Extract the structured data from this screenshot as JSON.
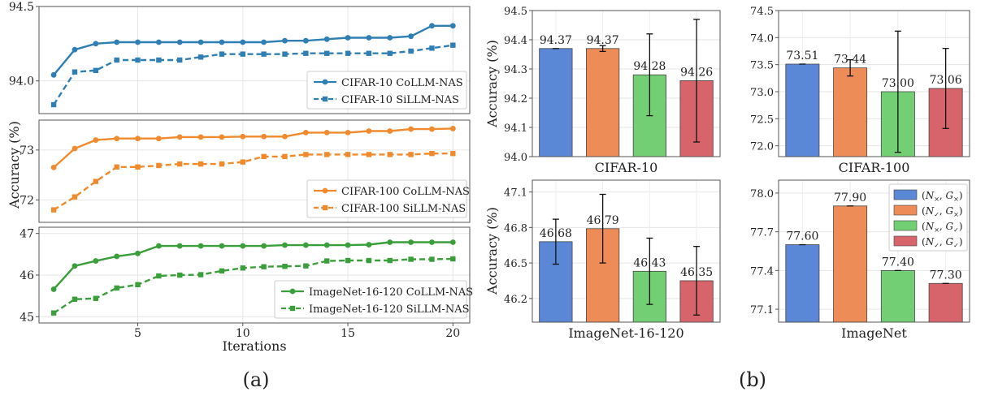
{
  "panel_labels": [
    "(a)",
    "(b)"
  ],
  "colors": {
    "blue": "#2f7fb5",
    "orange": "#f08a2c",
    "green": "#3a9f3a",
    "bar_blue": "#5a87d6",
    "bar_orange": "#ee8c58",
    "bar_green": "#73cf74",
    "bar_red": "#d6646a"
  },
  "chart_data": [
    {
      "type": "line",
      "panel": "(a)",
      "ylabel": "Accuracy (%)",
      "xlabel": "Iterations",
      "xlim": [
        0.3,
        20.8
      ],
      "xticks": [
        5,
        10,
        15,
        20
      ],
      "grid": true,
      "subplots": [
        {
          "ylim": [
            93.78,
            94.5
          ],
          "yticks": [
            94.0,
            94.5
          ],
          "ytick_labels": [
            "94.0",
            "94.5"
          ],
          "legend_position": "lower-right",
          "series": [
            {
              "name": "CIFAR-10 CoLLM-NAS",
              "style": "solid",
              "marker": "circle",
              "color": "#2f7fb5",
              "x": [
                1,
                2,
                3,
                4,
                5,
                6,
                7,
                8,
                9,
                10,
                11,
                12,
                13,
                14,
                15,
                16,
                17,
                18,
                19,
                20
              ],
              "y": [
                94.04,
                94.21,
                94.25,
                94.26,
                94.26,
                94.26,
                94.26,
                94.26,
                94.26,
                94.26,
                94.26,
                94.27,
                94.27,
                94.28,
                94.29,
                94.29,
                94.29,
                94.3,
                94.37,
                94.37
              ]
            },
            {
              "name": "CIFAR-10 SiLLM-NAS",
              "style": "dashed",
              "marker": "square",
              "color": "#2f7fb5",
              "x": [
                1,
                2,
                3,
                4,
                5,
                6,
                7,
                8,
                9,
                10,
                11,
                12,
                13,
                14,
                15,
                16,
                17,
                18,
                19,
                20
              ],
              "y": [
                93.84,
                94.06,
                94.07,
                94.14,
                94.14,
                94.14,
                94.14,
                94.16,
                94.18,
                94.18,
                94.18,
                94.18,
                94.185,
                94.185,
                94.185,
                94.185,
                94.185,
                94.2,
                94.22,
                94.24
              ]
            }
          ]
        },
        {
          "ylim": [
            71.55,
            73.6
          ],
          "yticks": [
            72,
            73
          ],
          "ytick_labels": [
            "72",
            "73"
          ],
          "legend_position": "lower-right",
          "series": [
            {
              "name": "CIFAR-100 CoLLM-NAS",
              "style": "solid",
              "marker": "circle",
              "color": "#f08a2c",
              "x": [
                1,
                2,
                3,
                4,
                5,
                6,
                7,
                8,
                9,
                10,
                11,
                12,
                13,
                14,
                15,
                16,
                17,
                18,
                19,
                20
              ],
              "y": [
                72.65,
                73.03,
                73.2,
                73.23,
                73.23,
                73.23,
                73.26,
                73.26,
                73.26,
                73.27,
                73.27,
                73.27,
                73.35,
                73.35,
                73.35,
                73.38,
                73.38,
                73.42,
                73.42,
                73.43
              ]
            },
            {
              "name": "CIFAR-100 SiLLM-NAS",
              "style": "dashed",
              "marker": "square",
              "color": "#f08a2c",
              "x": [
                1,
                2,
                3,
                4,
                5,
                6,
                7,
                8,
                9,
                10,
                11,
                12,
                13,
                14,
                15,
                16,
                17,
                18,
                19,
                20
              ],
              "y": [
                71.8,
                72.06,
                72.37,
                72.66,
                72.66,
                72.69,
                72.72,
                72.72,
                72.72,
                72.76,
                72.87,
                72.87,
                72.91,
                72.91,
                72.91,
                72.91,
                72.91,
                72.91,
                72.93,
                72.93
              ]
            }
          ]
        },
        {
          "ylim": [
            44.85,
            47.15
          ],
          "yticks": [
            45,
            46,
            47
          ],
          "ytick_labels": [
            "45",
            "46",
            "47"
          ],
          "legend_position": "lower-right",
          "series": [
            {
              "name": "ImageNet-16-120 CoLLM-NAS",
              "style": "solid",
              "marker": "circle",
              "color": "#3a9f3a",
              "x": [
                1,
                2,
                3,
                4,
                5,
                6,
                7,
                8,
                9,
                10,
                11,
                12,
                13,
                14,
                15,
                16,
                17,
                18,
                19,
                20
              ],
              "y": [
                45.66,
                46.22,
                46.34,
                46.45,
                46.52,
                46.7,
                46.7,
                46.7,
                46.7,
                46.7,
                46.7,
                46.72,
                46.72,
                46.72,
                46.72,
                46.73,
                46.79,
                46.79,
                46.79,
                46.79
              ]
            },
            {
              "name": "ImageNet-16-120 SiLLM-NAS",
              "style": "dashed",
              "marker": "square",
              "color": "#3a9f3a",
              "x": [
                1,
                2,
                3,
                4,
                5,
                6,
                7,
                8,
                9,
                10,
                11,
                12,
                13,
                14,
                15,
                16,
                17,
                18,
                19,
                20
              ],
              "y": [
                45.09,
                45.42,
                45.44,
                45.69,
                45.77,
                45.98,
                46.0,
                46.01,
                46.1,
                46.17,
                46.2,
                46.21,
                46.22,
                46.34,
                46.35,
                46.35,
                46.35,
                46.38,
                46.38,
                46.39
              ]
            }
          ]
        }
      ]
    },
    {
      "type": "bar",
      "panel": "(b)",
      "ylabel": "Accuracy (%)",
      "grid": true,
      "legend": {
        "position": "upper-right",
        "subplot": "ImageNet",
        "entries": [
          {
            "sym": "N",
            "sub1": "×",
            "sub2": "×",
            "color": "#5a87d6"
          },
          {
            "sym": "N",
            "sub1": "✓",
            "sub2": "×",
            "color": "#ee8c58"
          },
          {
            "sym": "N",
            "sub1": "×",
            "sub2": "✓",
            "color": "#73cf74"
          },
          {
            "sym": "N",
            "sub1": "✓",
            "sub2": "✓",
            "color": "#d6646a"
          }
        ],
        "g_symbol": "G"
      },
      "subplots": [
        {
          "title": "CIFAR-10",
          "ylim": [
            94.0,
            94.5
          ],
          "yticks": [
            "94.0",
            "94.1",
            "94.2",
            "94.3",
            "94.4",
            "94.5"
          ],
          "ytick_values": [
            94.0,
            94.1,
            94.2,
            94.3,
            94.4,
            94.5
          ],
          "values": [
            94.37,
            94.37,
            94.28,
            94.26
          ],
          "labels": [
            "94.37",
            "94.37",
            "94.28",
            "94.26"
          ],
          "errors": [
            0.0,
            0.01,
            0.14,
            0.21
          ]
        },
        {
          "title": "CIFAR-100",
          "ylim": [
            71.8,
            74.5
          ],
          "yticks": [
            "72.0",
            "72.5",
            "73.0",
            "73.5",
            "74.0",
            "74.5"
          ],
          "ytick_values": [
            72.0,
            72.5,
            73.0,
            73.5,
            74.0,
            74.5
          ],
          "values": [
            73.51,
            73.44,
            73.0,
            73.06
          ],
          "labels": [
            "73.51",
            "73.44",
            "73.00",
            "73.06"
          ],
          "errors": [
            0.0,
            0.15,
            1.12,
            0.74
          ]
        },
        {
          "title": "ImageNet-16-120",
          "ylim": [
            46.0,
            47.2
          ],
          "yticks": [
            "46.2",
            "46.5",
            "46.8",
            "47.1"
          ],
          "ytick_values": [
            46.2,
            46.5,
            46.8,
            47.1
          ],
          "values": [
            46.68,
            46.79,
            46.43,
            46.35
          ],
          "labels": [
            "46.68",
            "46.79",
            "46.43",
            "46.35"
          ],
          "errors": [
            0.19,
            0.29,
            0.28,
            0.29
          ]
        },
        {
          "title": "ImageNet",
          "ylim": [
            77.0,
            78.1
          ],
          "yticks": [
            "77.1",
            "77.4",
            "77.7",
            "78.0"
          ],
          "ytick_values": [
            77.1,
            77.4,
            77.7,
            78.0
          ],
          "values": [
            77.6,
            77.9,
            77.4,
            77.3
          ],
          "labels": [
            "77.60",
            "77.90",
            "77.40",
            "77.30"
          ],
          "errors": [
            0.0,
            0.0,
            0.0,
            0.0
          ]
        }
      ]
    }
  ]
}
